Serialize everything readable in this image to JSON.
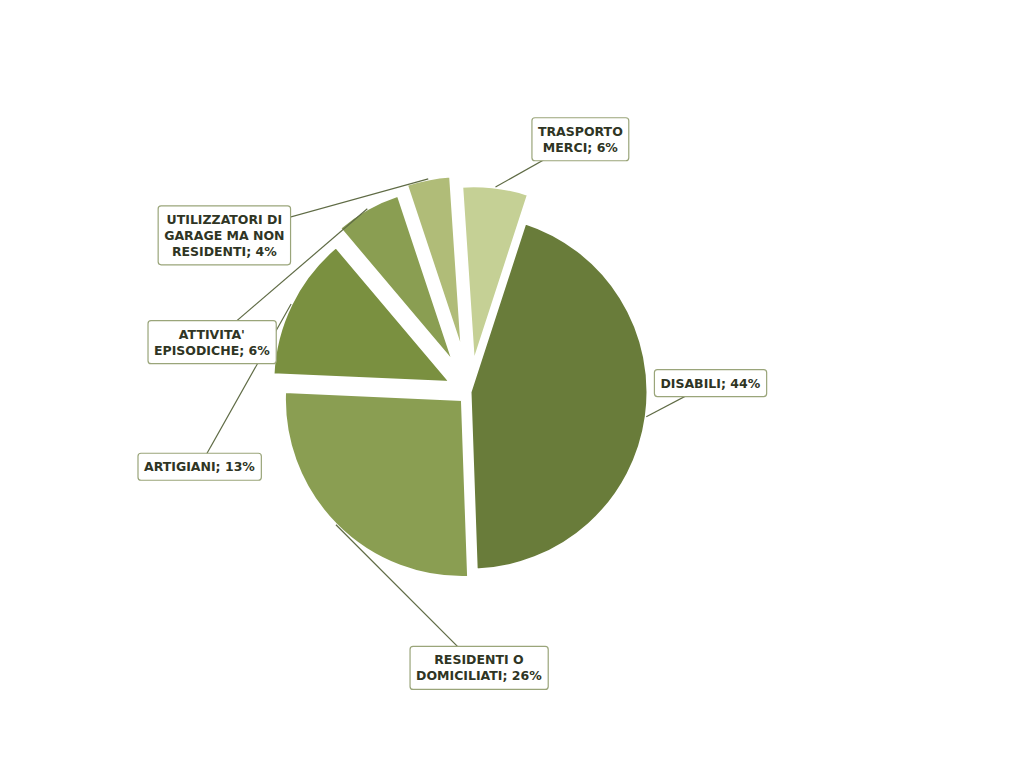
{
  "chart_data": {
    "type": "pie",
    "categories": [
      "DISABILI; 44%",
      "RESIDENTI O\nDOMICILIATI; 26%",
      "ARTIGIANI; 13%",
      "ATTIVITA'\nEPISODICHE; 6%",
      "UTILIZZATORI DI\nGARAGE MA NON\nRESIDENTI; 4%",
      "TRASPORTO\nMERCI; 6%"
    ],
    "values": [
      44,
      26,
      13,
      6,
      4,
      6
    ],
    "colors": [
      "#697c3a",
      "#8a9e52",
      "#7a9040",
      "#8a9e52",
      "#b0bc78",
      "#c5d095"
    ]
  }
}
